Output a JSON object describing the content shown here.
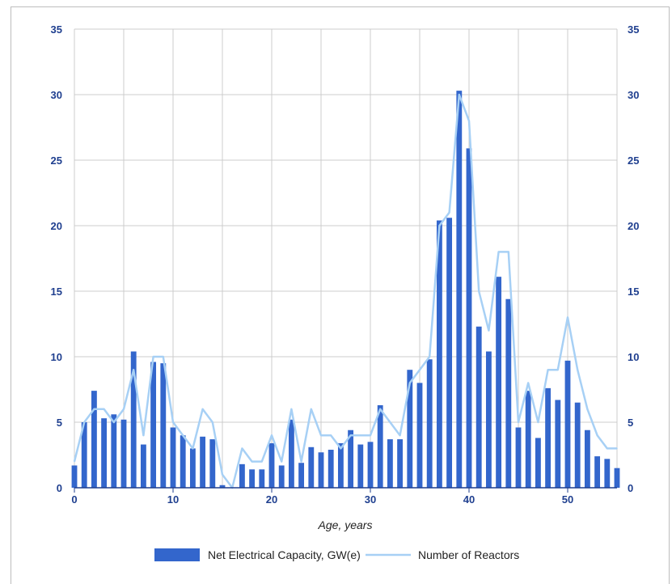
{
  "chart_data": {
    "type": "bar",
    "xlabel": "Age, years",
    "ylim": [
      0,
      35
    ],
    "y2lim": [
      0,
      35
    ],
    "xlim": [
      0,
      55
    ],
    "x_ticks": [
      0,
      10,
      20,
      30,
      40,
      50
    ],
    "y_ticks": [
      0,
      5,
      10,
      15,
      20,
      25,
      30,
      35
    ],
    "grid": true,
    "legend_position": "bottom",
    "x": [
      0,
      1,
      2,
      3,
      4,
      5,
      6,
      7,
      8,
      9,
      10,
      11,
      12,
      13,
      14,
      15,
      16,
      17,
      18,
      19,
      20,
      21,
      22,
      23,
      24,
      25,
      26,
      27,
      28,
      29,
      30,
      31,
      32,
      33,
      34,
      35,
      36,
      37,
      38,
      39,
      40,
      41,
      42,
      43,
      44,
      45,
      46,
      47,
      48,
      49,
      50,
      51,
      52,
      53,
      54,
      55
    ],
    "series": [
      {
        "name": "Net Electrical Capacity, GW(e)",
        "type": "bar",
        "axis": "left",
        "color": "#3366cc",
        "values": [
          1.7,
          5.0,
          7.4,
          5.3,
          5.6,
          5.2,
          10.4,
          3.3,
          9.6,
          9.5,
          4.6,
          4.0,
          3.0,
          3.9,
          3.7,
          0.2,
          0.0,
          1.8,
          1.4,
          1.4,
          3.4,
          1.7,
          5.2,
          1.9,
          3.1,
          2.7,
          2.9,
          3.4,
          4.4,
          3.3,
          3.5,
          6.3,
          3.7,
          3.7,
          9.0,
          8.0,
          9.8,
          20.4,
          20.6,
          30.3,
          25.9,
          12.3,
          10.4,
          16.1,
          14.4,
          4.6,
          7.4,
          3.8,
          7.6,
          6.7,
          9.7,
          6.5,
          4.4,
          2.4,
          2.2,
          1.5
        ]
      },
      {
        "name": "Number of Reactors",
        "type": "line",
        "axis": "right",
        "color": "#a7d0f5",
        "values": [
          2,
          5,
          6,
          6,
          5,
          6,
          9,
          4,
          10,
          10,
          5,
          4,
          3,
          6,
          5,
          1,
          0,
          3,
          2,
          2,
          4,
          2,
          6,
          2,
          6,
          4,
          4,
          3,
          4,
          4,
          4,
          6,
          5,
          4,
          8,
          9,
          10,
          20,
          21,
          30,
          28,
          15,
          12,
          18,
          18,
          5,
          8,
          5,
          9,
          9,
          13,
          9,
          6,
          4,
          3,
          3
        ]
      }
    ]
  }
}
